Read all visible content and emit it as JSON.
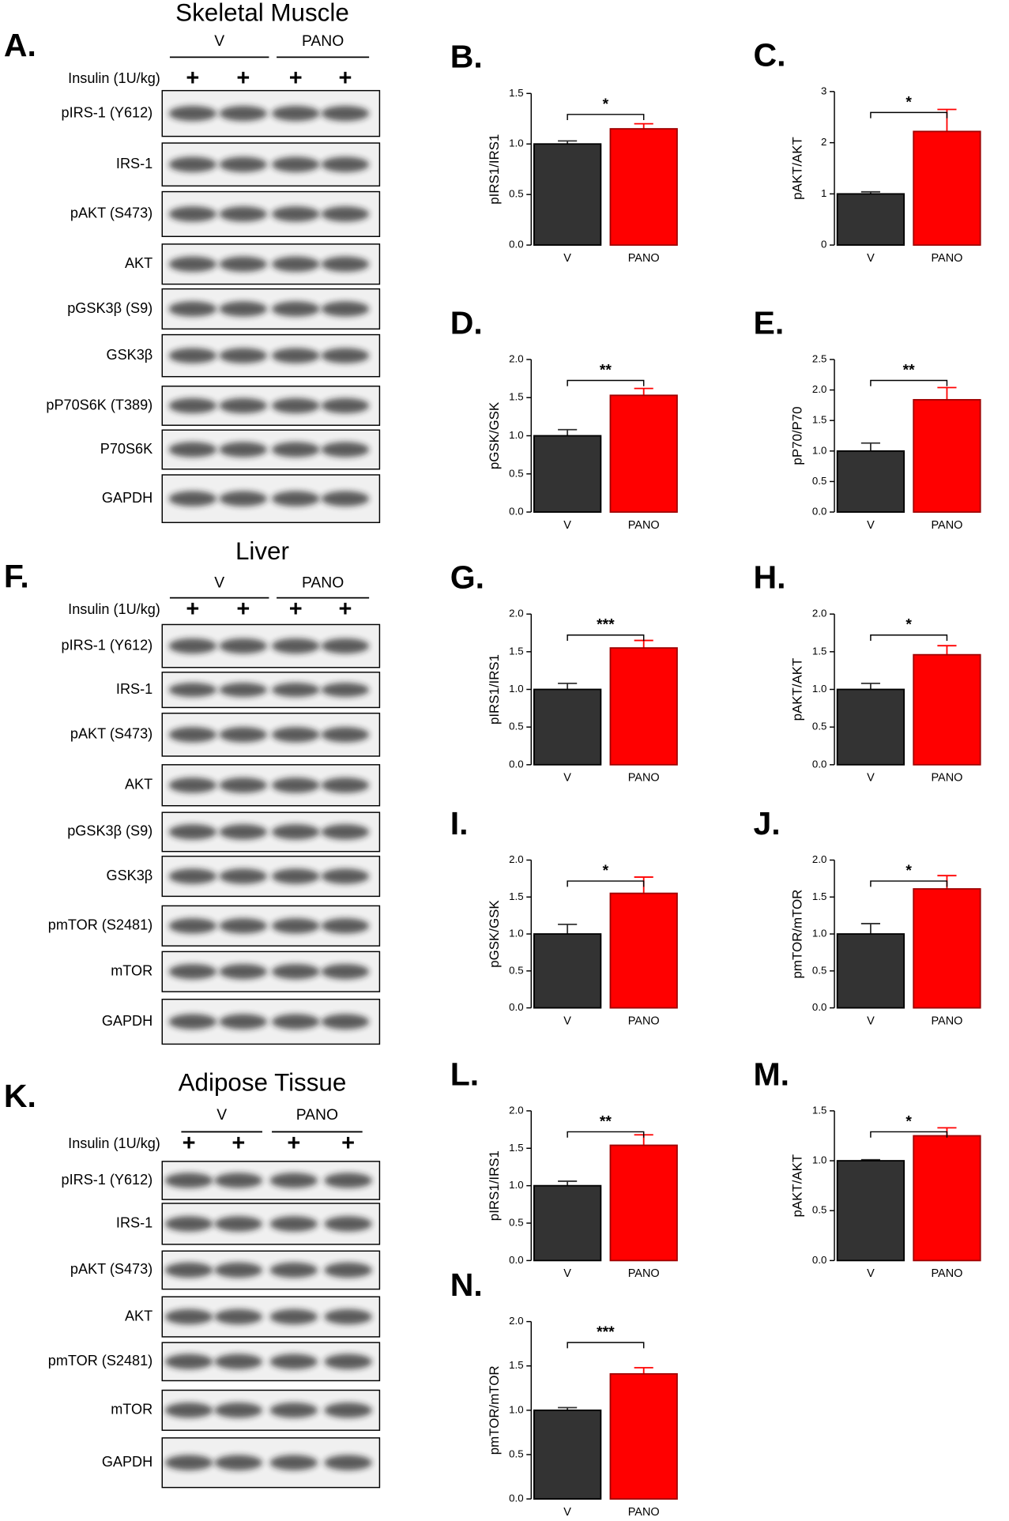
{
  "blots": [
    {
      "letter": "A.",
      "title": "Skeletal Muscle",
      "groups": [
        "V",
        "PANO"
      ],
      "treatment": "Insulin (1U/kg)",
      "lanes": [
        "+",
        "+",
        "+",
        "+"
      ],
      "proteins": [
        "pIRS-1 (Y612)",
        "IRS-1",
        "pAKT (S473)",
        "AKT",
        "pGSK3β (S9)",
        "GSK3β",
        "pP70S6K (T389)",
        "P70S6K",
        "GAPDH"
      ]
    },
    {
      "letter": "F.",
      "title": "Liver",
      "groups": [
        "V",
        "PANO"
      ],
      "treatment": "Insulin (1U/kg)",
      "lanes": [
        "+",
        "+",
        "+",
        "+"
      ],
      "proteins": [
        "pIRS-1 (Y612)",
        "IRS-1",
        "pAKT (S473)",
        "AKT",
        "pGSK3β (S9)",
        "GSK3β",
        "pmTOR (S2481)",
        "mTOR",
        "GAPDH"
      ]
    },
    {
      "letter": "K.",
      "title": "Adipose Tissue",
      "groups": [
        "V",
        "PANO"
      ],
      "treatment": "Insulin (1U/kg)",
      "lanes": [
        "+",
        "+",
        "+",
        "+"
      ],
      "proteins": [
        "pIRS-1 (Y612)",
        "IRS-1",
        "pAKT (S473)",
        "AKT",
        "pmTOR (S2481)",
        "mTOR",
        "GAPDH"
      ]
    }
  ],
  "chart_data": [
    {
      "type": "bar",
      "letter": "B.",
      "ylabel": "pIRS1/IRS1",
      "categories": [
        "V",
        "PANO"
      ],
      "values": [
        1.0,
        1.15
      ],
      "errors": [
        0.03,
        0.05
      ],
      "colors": [
        "#333333",
        "#ff0000"
      ],
      "ylim": [
        0,
        1.5
      ],
      "yticks": [
        {
          "value": 0,
          "label": "0.0"
        },
        {
          "value": 0.5,
          "label": "0.5"
        },
        {
          "value": 1,
          "label": "1.0"
        },
        {
          "value": 1.5,
          "label": "1.5"
        }
      ],
      "significance": "*"
    },
    {
      "type": "bar",
      "letter": "C.",
      "ylabel": "pAKT/AKT",
      "categories": [
        "V",
        "PANO"
      ],
      "values": [
        1.0,
        2.22
      ],
      "errors": [
        0.04,
        0.43
      ],
      "colors": [
        "#333333",
        "#ff0000"
      ],
      "ylim": [
        0,
        3
      ],
      "yticks": [
        0,
        1,
        2,
        3
      ],
      "significance": "*"
    },
    {
      "type": "bar",
      "letter": "D.",
      "ylabel": "pGSK/GSK",
      "categories": [
        "V",
        "PANO"
      ],
      "values": [
        1.0,
        1.53
      ],
      "errors": [
        0.08,
        0.09
      ],
      "colors": [
        "#333333",
        "#ff0000"
      ],
      "ylim": [
        0,
        2
      ],
      "yticks": [
        {
          "value": 0,
          "label": "0.0"
        },
        {
          "value": 0.5,
          "label": "0.5"
        },
        {
          "value": 1,
          "label": "1.0"
        },
        {
          "value": 1.5,
          "label": "1.5"
        },
        {
          "value": 2,
          "label": "2.0"
        }
      ],
      "significance": "**"
    },
    {
      "type": "bar",
      "letter": "E.",
      "ylabel": "pP70/P70",
      "categories": [
        "V",
        "PANO"
      ],
      "values": [
        1.0,
        1.84
      ],
      "errors": [
        0.13,
        0.2
      ],
      "colors": [
        "#333333",
        "#ff0000"
      ],
      "ylim": [
        0,
        2.5
      ],
      "yticks": [
        {
          "value": 0,
          "label": "0.0"
        },
        {
          "value": 0.5,
          "label": "0.5"
        },
        {
          "value": 1,
          "label": "1.0"
        },
        {
          "value": 1.5,
          "label": "1.5"
        },
        {
          "value": 2,
          "label": "2.0"
        },
        {
          "value": 2.5,
          "label": "2.5"
        }
      ],
      "significance": "**"
    },
    {
      "type": "bar",
      "letter": "G.",
      "ylabel": "pIRS1/IRS1",
      "categories": [
        "V",
        "PANO"
      ],
      "values": [
        1.0,
        1.55
      ],
      "errors": [
        0.08,
        0.1
      ],
      "colors": [
        "#333333",
        "#ff0000"
      ],
      "ylim": [
        0,
        2
      ],
      "yticks": [
        {
          "value": 0,
          "label": "0.0"
        },
        {
          "value": 0.5,
          "label": "0.5"
        },
        {
          "value": 1,
          "label": "1.0"
        },
        {
          "value": 1.5,
          "label": "1.5"
        },
        {
          "value": 2,
          "label": "2.0"
        }
      ],
      "significance": "***"
    },
    {
      "type": "bar",
      "letter": "H.",
      "ylabel": "pAKT/AKT",
      "categories": [
        "V",
        "PANO"
      ],
      "values": [
        1.0,
        1.46
      ],
      "errors": [
        0.08,
        0.12
      ],
      "colors": [
        "#333333",
        "#ff0000"
      ],
      "ylim": [
        0,
        2
      ],
      "yticks": [
        {
          "value": 0,
          "label": "0.0"
        },
        {
          "value": 0.5,
          "label": "0.5"
        },
        {
          "value": 1,
          "label": "1.0"
        },
        {
          "value": 1.5,
          "label": "1.5"
        },
        {
          "value": 2,
          "label": "2.0"
        }
      ],
      "significance": "*"
    },
    {
      "type": "bar",
      "letter": "I.",
      "ylabel": "pGSK/GSK",
      "categories": [
        "V",
        "PANO"
      ],
      "values": [
        1.0,
        1.55
      ],
      "errors": [
        0.13,
        0.22
      ],
      "colors": [
        "#333333",
        "#ff0000"
      ],
      "ylim": [
        0,
        2
      ],
      "yticks": [
        {
          "value": 0,
          "label": "0.0"
        },
        {
          "value": 0.5,
          "label": "0.5"
        },
        {
          "value": 1,
          "label": "1.0"
        },
        {
          "value": 1.5,
          "label": "1.5"
        },
        {
          "value": 2,
          "label": "2.0"
        }
      ],
      "significance": "*"
    },
    {
      "type": "bar",
      "letter": "J.",
      "ylabel": "pmTOR/mTOR",
      "categories": [
        "V",
        "PANO"
      ],
      "values": [
        1.0,
        1.61
      ],
      "errors": [
        0.14,
        0.18
      ],
      "colors": [
        "#333333",
        "#ff0000"
      ],
      "ylim": [
        0,
        2
      ],
      "yticks": [
        {
          "value": 0,
          "label": "0.0"
        },
        {
          "value": 0.5,
          "label": "0.5"
        },
        {
          "value": 1,
          "label": "1.0"
        },
        {
          "value": 1.5,
          "label": "1.5"
        },
        {
          "value": 2,
          "label": "2.0"
        }
      ],
      "significance": "*"
    },
    {
      "type": "bar",
      "letter": "L.",
      "ylabel": "pIRS1/IRS1",
      "categories": [
        "V",
        "PANO"
      ],
      "values": [
        1.0,
        1.54
      ],
      "errors": [
        0.06,
        0.14
      ],
      "colors": [
        "#333333",
        "#ff0000"
      ],
      "ylim": [
        0,
        2
      ],
      "yticks": [
        {
          "value": 0,
          "label": "0.0"
        },
        {
          "value": 0.5,
          "label": "0.5"
        },
        {
          "value": 1,
          "label": "1.0"
        },
        {
          "value": 1.5,
          "label": "1.5"
        },
        {
          "value": 2,
          "label": "2.0"
        }
      ],
      "significance": "**"
    },
    {
      "type": "bar",
      "letter": "M.",
      "ylabel": "pAKT/AKT",
      "categories": [
        "V",
        "PANO"
      ],
      "values": [
        1.0,
        1.25
      ],
      "errors": [
        0.01,
        0.08
      ],
      "colors": [
        "#333333",
        "#ff0000"
      ],
      "ylim": [
        0,
        1.5
      ],
      "yticks": [
        {
          "value": 0,
          "label": "0.0"
        },
        {
          "value": 0.5,
          "label": "0.5"
        },
        {
          "value": 1,
          "label": "1.0"
        },
        {
          "value": 1.5,
          "label": "1.5"
        }
      ],
      "significance": "*"
    },
    {
      "type": "bar",
      "letter": "N.",
      "ylabel": "pmTOR/mTOR",
      "categories": [
        "V",
        "PANO"
      ],
      "values": [
        1.0,
        1.41
      ],
      "errors": [
        0.03,
        0.07
      ],
      "colors": [
        "#333333",
        "#ff0000"
      ],
      "ylim": [
        0,
        2
      ],
      "yticks": [
        {
          "value": 0,
          "label": "0.0"
        },
        {
          "value": 0.5,
          "label": "0.5"
        },
        {
          "value": 1,
          "label": "1.0"
        },
        {
          "value": 1.5,
          "label": "1.5"
        },
        {
          "value": 2,
          "label": "2.0"
        }
      ],
      "significance": "***"
    }
  ]
}
